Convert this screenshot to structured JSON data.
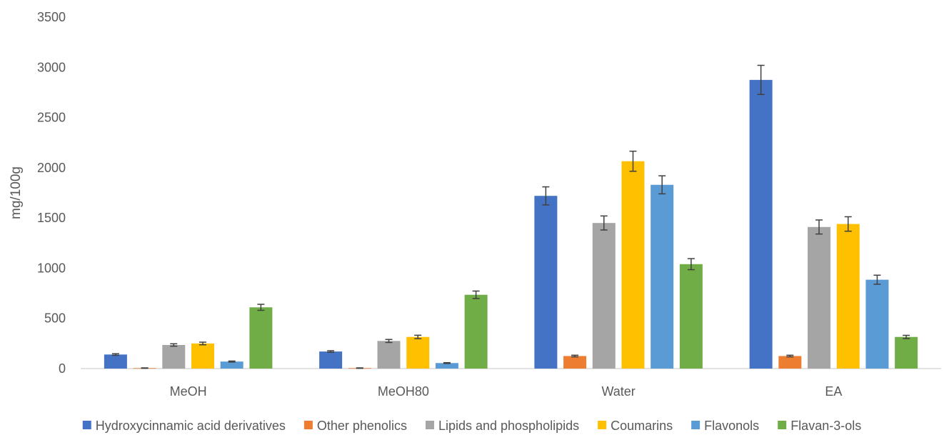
{
  "chart_data": {
    "type": "bar",
    "title": "",
    "xlabel": "",
    "ylabel": "mg/100g",
    "ylim": [
      0,
      3500
    ],
    "yticks": [
      0,
      500,
      1000,
      1500,
      2000,
      2500,
      3000,
      3500
    ],
    "grid": false,
    "legend_position": "bottom",
    "categories": [
      "MeOH",
      "MeOH80",
      "Water",
      "EA"
    ],
    "series": [
      {
        "name": "Hydroxycinnamic acid derivatives",
        "color": "#4472C4",
        "values": [
          140,
          170,
          1720,
          2875
        ],
        "errors": [
          8,
          8,
          90,
          145
        ]
      },
      {
        "name": "Other phenolics",
        "color": "#ED7D31",
        "values": [
          5,
          5,
          125,
          125
        ],
        "errors": [
          2,
          2,
          8,
          8
        ]
      },
      {
        "name": "Lipids and phospholipids",
        "color": "#A5A5A5",
        "values": [
          235,
          275,
          1450,
          1410
        ],
        "errors": [
          12,
          15,
          70,
          70
        ]
      },
      {
        "name": "Coumarins",
        "color": "#FFC000",
        "values": [
          250,
          315,
          2065,
          1440
        ],
        "errors": [
          13,
          17,
          100,
          72
        ]
      },
      {
        "name": "Flavonols",
        "color": "#5B9BD5",
        "values": [
          70,
          55,
          1830,
          885
        ],
        "errors": [
          5,
          4,
          90,
          45
        ]
      },
      {
        "name": "Flavan-3-ols",
        "color": "#70AD47",
        "values": [
          610,
          735,
          1040,
          315
        ],
        "errors": [
          30,
          37,
          55,
          16
        ]
      }
    ]
  }
}
